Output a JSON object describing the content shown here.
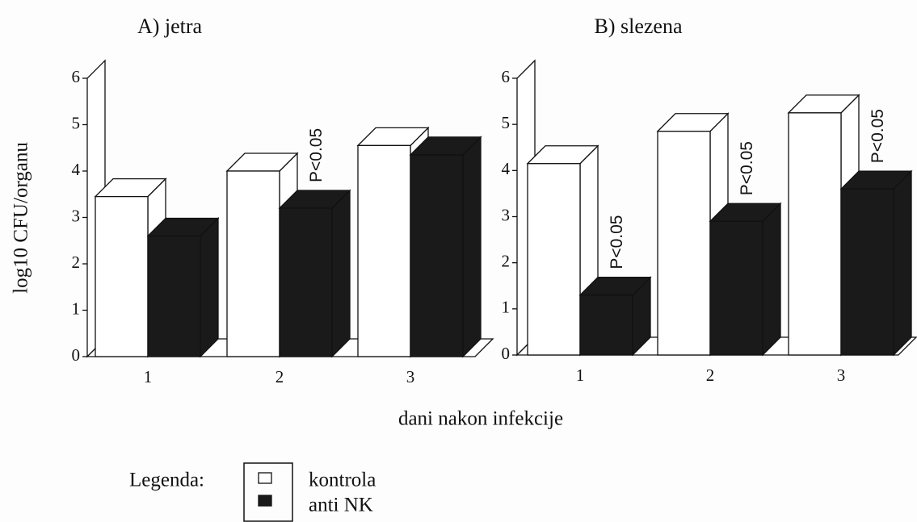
{
  "ylabel": "log10 CFU/organu",
  "xlabel": "dani nakon infekcije",
  "legend": {
    "title": "Legenda:",
    "entries": [
      "kontrola",
      "anti NK"
    ]
  },
  "chart_data": [
    {
      "type": "bar3d",
      "title": "A) jetra",
      "categories": [
        "1",
        "2",
        "3"
      ],
      "series": [
        {
          "color": "#ffffff",
          "values": [
            3.45,
            4.0,
            4.55
          ]
        },
        {
          "color": "#1a1a1a",
          "values": [
            2.6,
            3.2,
            4.35
          ]
        }
      ],
      "ylim": [
        0,
        6
      ],
      "yticks": [
        0,
        1,
        2,
        3,
        4,
        5,
        6
      ],
      "annotations": [
        {
          "text": "P<0.05",
          "x": "2"
        }
      ]
    },
    {
      "type": "bar3d",
      "title": "B) slezena",
      "categories": [
        "1",
        "2",
        "3"
      ],
      "series": [
        {
          "color": "#ffffff",
          "values": [
            4.15,
            4.85,
            5.25
          ]
        },
        {
          "color": "#1a1a1a",
          "values": [
            1.3,
            2.9,
            3.6
          ]
        }
      ],
      "ylim": [
        0,
        6
      ],
      "yticks": [
        0,
        1,
        2,
        3,
        4,
        5,
        6
      ],
      "annotations": [
        {
          "text": "P<0.05",
          "x": "1"
        },
        {
          "text": "P<0.05",
          "x": "2"
        },
        {
          "text": "P<0.05",
          "x": "3"
        }
      ]
    }
  ]
}
